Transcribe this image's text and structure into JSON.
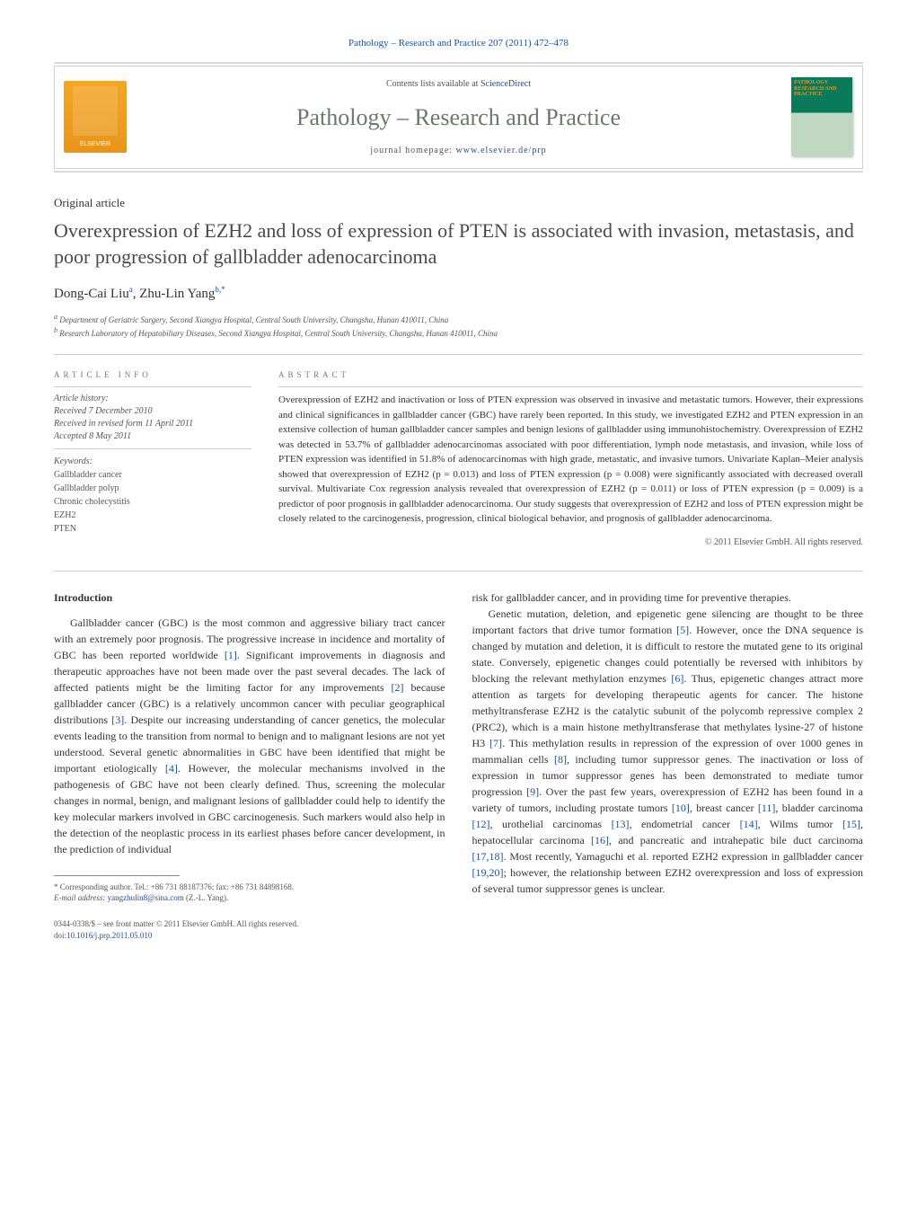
{
  "header": {
    "citation_prefix": "Pathology – Research and Practice 207 (2011) 472–478",
    "contents_text": "Contents lists available at",
    "contents_link": "ScienceDirect",
    "journal_name": "Pathology – Research and Practice",
    "homepage_label": "journal homepage:",
    "homepage_url": "www.elsevier.de/prp",
    "publisher_logo_text": "ELSEVIER",
    "cover_title": "PATHOLOGY RESEARCH AND PRACTICE"
  },
  "article": {
    "type": "Original article",
    "title": "Overexpression of EZH2 and loss of expression of PTEN is associated with invasion, metastasis, and poor progression of gallbladder adenocarcinoma",
    "authors_html": "Dong-Cai Liu",
    "author1": "Dong-Cai Liu",
    "author1_sup": "a",
    "author2": "Zhu-Lin Yang",
    "author2_sup": "b,",
    "author2_star": "*",
    "affiliations": {
      "a": "Department of Geriatric Surgery, Second Xiangya Hospital, Central South University, Changsha, Hunan 410011, China",
      "b": "Research Laboratory of Hepatobiliary Diseases, Second Xiangya Hospital, Central South University, Changsha, Hunan 410011, China"
    }
  },
  "info": {
    "heading": "article info",
    "history_label": "Article history:",
    "received": "Received 7 December 2010",
    "revised": "Received in revised form 11 April 2011",
    "accepted": "Accepted 8 May 2011",
    "keywords_label": "Keywords:",
    "keywords": [
      "Gallbladder cancer",
      "Gallbladder polyp",
      "Chronic cholecystitis",
      "EZH2",
      "PTEN"
    ]
  },
  "abstract": {
    "heading": "abstract",
    "text": "Overexpression of EZH2 and inactivation or loss of PTEN expression was observed in invasive and metastatic tumors. However, their expressions and clinical significances in gallbladder cancer (GBC) have rarely been reported. In this study, we investigated EZH2 and PTEN expression in an extensive collection of human gallbladder cancer samples and benign lesions of gallbladder using immunohistochemistry. Overexpression of EZH2 was detected in 53.7% of gallbladder adenocarcinomas associated with poor differentiation, lymph node metastasis, and invasion, while loss of PTEN expression was identified in 51.8% of adenocarcinomas with high grade, metastatic, and invasive tumors. Univariate Kaplan–Meier analysis showed that overexpression of EZH2 (p = 0.013) and loss of PTEN expression (p = 0.008) were significantly associated with decreased overall survival. Multivariate Cox regression analysis revealed that overexpression of EZH2 (p = 0.011) or loss of PTEN expression (p = 0.009) is a predictor of poor prognosis in gallbladder adenocarcinoma. Our study suggests that overexpression of EZH2 and loss of PTEN expression might be closely related to the carcinogenesis, progression, clinical biological behavior, and prognosis of gallbladder adenocarcinoma.",
    "copyright": "© 2011 Elsevier GmbH. All rights reserved."
  },
  "body": {
    "intro_heading": "Introduction",
    "col1_p1_a": "Gallbladder cancer (GBC) is the most common and aggressive biliary tract cancer with an extremely poor prognosis. The progressive increase in incidence and mortality of GBC has been reported worldwide ",
    "ref1": "[1]",
    "col1_p1_b": ". Significant improvements in diagnosis and therapeutic approaches have not been made over the past several decades. The lack of affected patients might be the limiting factor for any improvements ",
    "ref2": "[2]",
    "col1_p1_c": " because gallbladder cancer (GBC) is a relatively uncommon cancer with peculiar geographical distributions ",
    "ref3": "[3]",
    "col1_p1_d": ". Despite our increasing understanding of cancer genetics, the molecular events leading to the transition from normal to benign and to malignant lesions are not yet understood. Several genetic abnormalities in GBC have been identified that might be important etiologically ",
    "ref4": "[4]",
    "col1_p1_e": ". However, the molecular mechanisms involved in the pathogenesis of GBC have not been clearly defined. Thus, screening the molecular changes in normal, benign, and malignant lesions of gallbladder could help to identify the key molecular markers involved in GBC carcinogenesis. Such markers would also help in the detection of the neoplastic process in its earliest phases before cancer development, in the prediction of individual",
    "col2_p0": "risk for gallbladder cancer, and in providing time for preventive therapies.",
    "col2_p1_a": "Genetic mutation, deletion, and epigenetic gene silencing are thought to be three important factors that drive tumor formation ",
    "ref5": "[5]",
    "col2_p1_b": ". However, once the DNA sequence is changed by mutation and deletion, it is difficult to restore the mutated gene to its original state. Conversely, epigenetic changes could potentially be reversed with inhibitors by blocking the relevant methylation enzymes ",
    "ref6": "[6]",
    "col2_p1_c": ". Thus, epigenetic changes attract more attention as targets for developing therapeutic agents for cancer. The histone methyltransferase EZH2 is the catalytic subunit of the polycomb repressive complex 2 (PRC2), which is a main histone methyltransferase that methylates lysine-27 of histone H3 ",
    "ref7": "[7]",
    "col2_p1_d": ". This methylation results in repression of the expression of over 1000 genes in mammalian cells ",
    "ref8": "[8]",
    "col2_p1_e": ", including tumor suppressor genes. The inactivation or loss of expression in tumor suppressor genes has been demonstrated to mediate tumor progression ",
    "ref9": "[9]",
    "col2_p1_f": ". Over the past few years, overexpression of EZH2 has been found in a variety of tumors, including prostate tumors ",
    "ref10": "[10]",
    "col2_p1_g": ", breast cancer ",
    "ref11": "[11]",
    "col2_p1_h": ", bladder carcinoma ",
    "ref12": "[12]",
    "col2_p1_i": ", urothelial carcinomas ",
    "ref13": "[13]",
    "col2_p1_j": ", endometrial cancer ",
    "ref14": "[14]",
    "col2_p1_k": ", Wilms tumor ",
    "ref15": "[15]",
    "col2_p1_l": ", hepatocellular carcinoma ",
    "ref16": "[16]",
    "col2_p1_m": ", and pancreatic and intrahepatic bile duct carcinoma ",
    "ref17_18": "[17,18]",
    "col2_p1_n": ". Most recently, Yamaguchi et al. reported EZH2 expression in gallbladder cancer ",
    "ref19_20": "[19,20]",
    "col2_p1_o": "; however, the relationship between EZH2 overexpression and loss of expression of several tumor suppressor genes is unclear."
  },
  "footnote": {
    "corresponding": "* Corresponding author. Tel.: +86 731 88187376; fax: +86 731 84898168.",
    "email_label": "E-mail address:",
    "email": "yangzhulin8@sina.com",
    "email_name": "(Z.-L. Yang)."
  },
  "footer": {
    "issn": "0344-0338/$ – see front matter © 2011 Elsevier GmbH. All rights reserved.",
    "doi_label": "doi:",
    "doi": "10.1016/j.prp.2011.05.010"
  },
  "colors": {
    "link": "#1a4f9c",
    "text": "#333333",
    "muted": "#555555",
    "divider": "#cccccc",
    "journal_name": "#6a7a6a"
  }
}
